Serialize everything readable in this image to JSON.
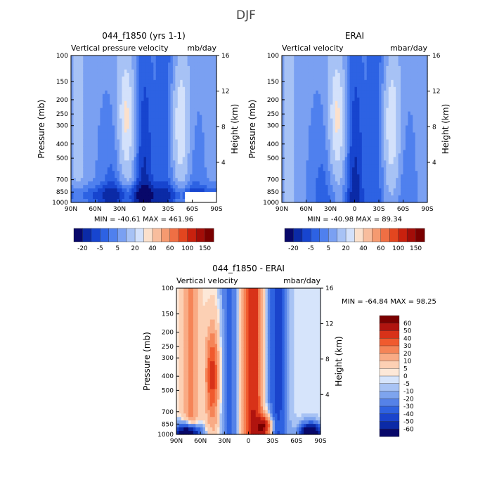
{
  "figure_title": "DJF",
  "chart_data": [
    {
      "type": "heatmap",
      "id": "model",
      "title": "044_f1850 (yrs 1-1)",
      "subtitle_left": "Vertical pressure velocity",
      "subtitle_right": "mb/day",
      "ylabel": "Pressure (mb)",
      "ylabel_right": "Height (km)",
      "x_ticks": [
        "90N",
        "60N",
        "30N",
        "0",
        "30S",
        "60S",
        "90S"
      ],
      "y_ticks": [
        "100",
        "150",
        "200",
        "250",
        "300",
        "400",
        "500",
        "700",
        "850",
        "1000"
      ],
      "y_right_ticks": [
        "16",
        "12",
        "8",
        "4"
      ],
      "stats": "MIN = -40.61   MAX = 461.96",
      "colorbar_labels": [
        "-20",
        "-5",
        "5",
        "20",
        "40",
        "60",
        "100",
        "150"
      ],
      "pattern": "model"
    },
    {
      "type": "heatmap",
      "id": "obs",
      "title": "ERAI",
      "subtitle_left": "Vertical velocity",
      "subtitle_right": "mbar/day",
      "ylabel": "Pressure (mb)",
      "ylabel_right": "Height (km)",
      "x_ticks": [
        "90N",
        "60N",
        "30N",
        "0",
        "30S",
        "60S",
        "90S"
      ],
      "y_ticks": [
        "100",
        "150",
        "200",
        "250",
        "300",
        "400",
        "500",
        "700",
        "850",
        "1000"
      ],
      "y_right_ticks": [
        "16",
        "12",
        "8",
        "4"
      ],
      "stats": "MIN = -40.98   MAX = 89.34",
      "colorbar_labels": [
        "-20",
        "-5",
        "5",
        "20",
        "40",
        "60",
        "100",
        "150"
      ],
      "pattern": "obs"
    },
    {
      "type": "heatmap",
      "id": "diff",
      "title": "044_f1850 - ERAI",
      "subtitle_left": "Vertical velocity",
      "subtitle_right": "mbar/day",
      "ylabel": "Pressure (mb)",
      "ylabel_right": "Height (km)",
      "x_ticks": [
        "90N",
        "60N",
        "30N",
        "0",
        "30S",
        "60S",
        "90S"
      ],
      "y_ticks": [
        "100",
        "150",
        "200",
        "250",
        "300",
        "400",
        "500",
        "700",
        "850",
        "1000"
      ],
      "y_right_ticks": [
        "16",
        "12",
        "8",
        "4"
      ],
      "stats": "MIN = -64.84   MAX =  98.25",
      "colorbar_labels": [
        "60",
        "50",
        "40",
        "30",
        "20",
        "10",
        "5",
        "0",
        "-5",
        "-10",
        "-20",
        "-30",
        "-40",
        "-50",
        "-60"
      ],
      "pattern": "diff"
    }
  ],
  "colors": {
    "abs_scale": [
      "#08086a",
      "#0b2aa6",
      "#1745cf",
      "#2d62e3",
      "#4f80ee",
      "#7aa0f2",
      "#a7c2f5",
      "#d3e1fb",
      "#fbe0cc",
      "#f8bd9d",
      "#f59a70",
      "#ef6f44",
      "#e3461f",
      "#c9210e",
      "#a30d08",
      "#7a0000"
    ],
    "diff_scale": [
      "#7a0000",
      "#b0140f",
      "#d83219",
      "#f05a2e",
      "#f58457",
      "#f9ab85",
      "#fcd0b4",
      "#fde8d8",
      "#d6e4fb",
      "#a8c3f4",
      "#7ea4ee",
      "#5582e8",
      "#2f62e0",
      "#1a44cc",
      "#0b2aa6",
      "#08086a"
    ]
  }
}
